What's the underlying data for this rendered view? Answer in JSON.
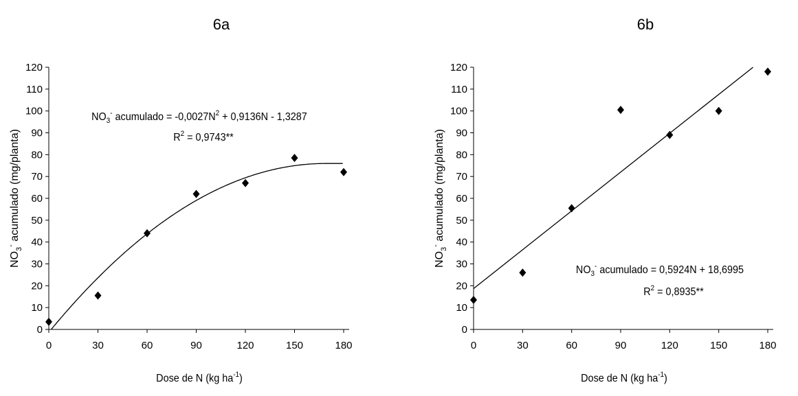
{
  "chart_data": [
    {
      "type": "scatter",
      "title": "6a",
      "xlabel": "Dose de N (kg ha-1)",
      "xlabel_main": "Dose de N (kg ha",
      "xlabel_sup": "-1",
      "xlabel_close": ")",
      "ylabel": "NO3- acumulado (mg/planta)",
      "ylabel_a": "NO",
      "ylabel_sub": "3",
      "ylabel_sup": "-",
      "ylabel_b": " acumulado (mg/planta)",
      "xlim": [
        0,
        180
      ],
      "ylim": [
        0,
        120
      ],
      "xticks": [
        "0",
        "30",
        "60",
        "90",
        "120",
        "150",
        "180"
      ],
      "yticks": [
        "0",
        "10",
        "20",
        "30",
        "40",
        "50",
        "60",
        "70",
        "80",
        "90",
        "100",
        "110",
        "120"
      ],
      "x": [
        0,
        30,
        60,
        90,
        120,
        150,
        180
      ],
      "y": [
        3.5,
        15.5,
        44,
        62,
        67,
        78.5,
        72
      ],
      "fit": {
        "type": "quadratic",
        "a": -0.0027,
        "b": 0.9136,
        "c": -1.3287,
        "x_max": 170
      },
      "equation": {
        "part1": "NO",
        "sub": "3",
        "sup": "-",
        "part2": " acumulado = -0,0027N",
        "sup2": "2",
        "part3": " + 0,9136N - 1,3287",
        "r2_a": "R",
        "r2_sup": "2",
        "r2_b": " = 0,9743**"
      }
    },
    {
      "type": "scatter",
      "title": "6b",
      "xlabel": "Dose de N (kg ha-1)",
      "xlabel_main": "Dose de N (kg ha",
      "xlabel_sup": "-1",
      "xlabel_close": ")",
      "ylabel": "NO3- acumulado (mg/planta)",
      "ylabel_a": "NO",
      "ylabel_sub": "3",
      "ylabel_sup": "-",
      "ylabel_b": " acumulado (mg/planta)",
      "xlim": [
        0,
        180
      ],
      "ylim": [
        0,
        120
      ],
      "xticks": [
        "0",
        "30",
        "60",
        "90",
        "120",
        "150",
        "180"
      ],
      "yticks": [
        "0",
        "10",
        "20",
        "30",
        "40",
        "50",
        "60",
        "70",
        "80",
        "90",
        "100",
        "110",
        "120"
      ],
      "x": [
        0,
        30,
        60,
        90,
        120,
        150,
        180
      ],
      "y": [
        13.5,
        26,
        55.5,
        100.5,
        89,
        100,
        118
      ],
      "fit": {
        "type": "linear",
        "a": 0,
        "b": 0.5924,
        "c": 18.6995,
        "x_max": 171
      },
      "equation": {
        "part1": "NO",
        "sub": "3",
        "sup": "-",
        "part2": " acumulado = 0,5924N + 18,6995",
        "sup2": "",
        "part3": "",
        "r2_a": "R",
        "r2_sup": "2",
        "r2_b": " = 0,8935**"
      }
    }
  ]
}
